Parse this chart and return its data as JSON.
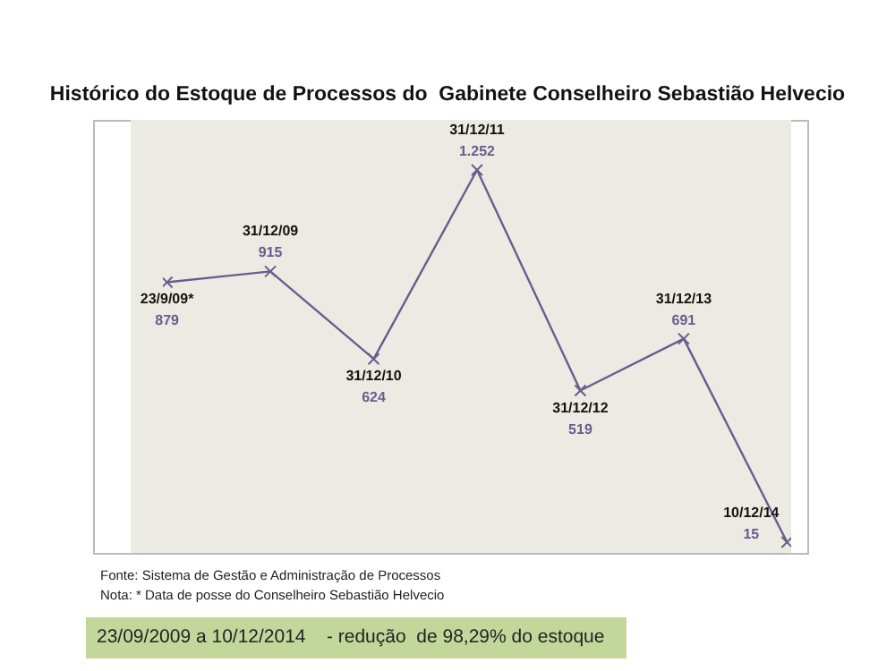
{
  "chart_data": {
    "type": "line",
    "title": "Histórico do Estoque de Processos do  Gabinete Conselheiro Sebastião Helvecio",
    "categories": [
      "23/9/09*",
      "31/12/09",
      "31/12/10",
      "31/12/11",
      "31/12/12",
      "31/12/13",
      "10/12/14"
    ],
    "series": [
      {
        "color": "#6b5b8e",
        "values": [
          879,
          915,
          624,
          1252,
          519,
          691,
          15
        ],
        "value_labels": [
          "879",
          "915",
          "624",
          "1.252",
          "519",
          "691",
          "15"
        ]
      }
    ],
    "marker": "cross",
    "line_style": "solid",
    "grid": false,
    "legend": false,
    "tick_labels": false,
    "annotations": [
      "Fonte: Sistema de Gestão e Administração de Processos",
      "Nota: * Data de posse do Conselheiro Sebastião Helvecio",
      "23/09/2009 a 10/12/2014    - redução  de 98,29% do estoque"
    ]
  }
}
